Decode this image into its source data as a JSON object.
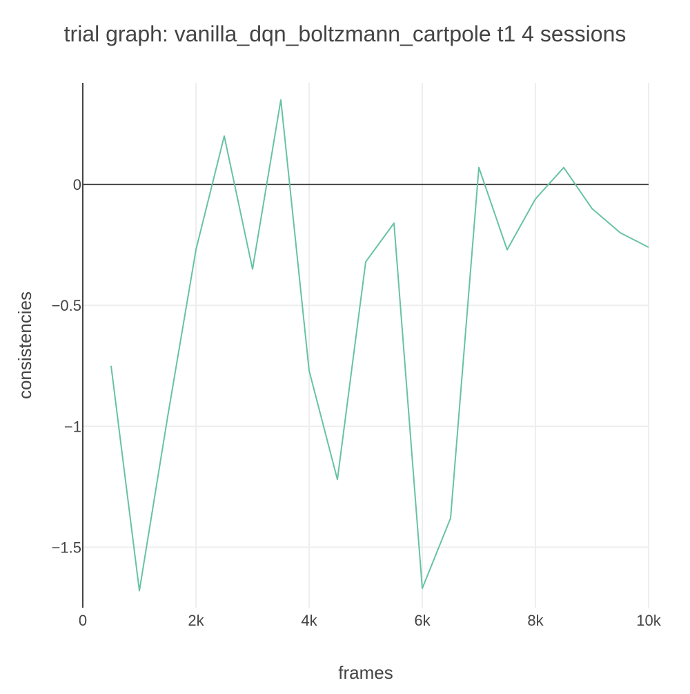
{
  "chart_data": {
    "type": "line",
    "title": "trial graph: vanilla_dqn_boltzmann_cartpole t1 4 sessions",
    "xlabel": "frames",
    "ylabel": "consistencies",
    "xlim": [
      0,
      10000
    ],
    "ylim": [
      -1.75,
      0.42
    ],
    "grid": true,
    "legend": "none",
    "x_ticks": [
      {
        "value": 0,
        "label": "0"
      },
      {
        "value": 2000,
        "label": "2k"
      },
      {
        "value": 4000,
        "label": "4k"
      },
      {
        "value": 6000,
        "label": "6k"
      },
      {
        "value": 8000,
        "label": "8k"
      },
      {
        "value": 10000,
        "label": "10k"
      }
    ],
    "y_ticks": [
      {
        "value": 0,
        "label": "0"
      },
      {
        "value": -0.5,
        "label": "−0.5"
      },
      {
        "value": -1,
        "label": "−1"
      },
      {
        "value": -1.5,
        "label": "−1.5"
      }
    ],
    "series": [
      {
        "color": "#66c2a5",
        "x": [
          500,
          1000,
          1500,
          2000,
          2500,
          3000,
          3500,
          4000,
          4500,
          5000,
          5500,
          6000,
          6500,
          7000,
          7500,
          8000,
          8500,
          9000,
          9500,
          10000
        ],
        "values": [
          -0.75,
          -1.68,
          -0.96,
          -0.27,
          0.2,
          -0.35,
          0.35,
          -0.77,
          -1.22,
          -0.32,
          -0.16,
          -1.67,
          -1.38,
          0.07,
          -0.27,
          -0.06,
          0.07,
          -0.1,
          -0.2,
          -0.26
        ]
      }
    ]
  }
}
